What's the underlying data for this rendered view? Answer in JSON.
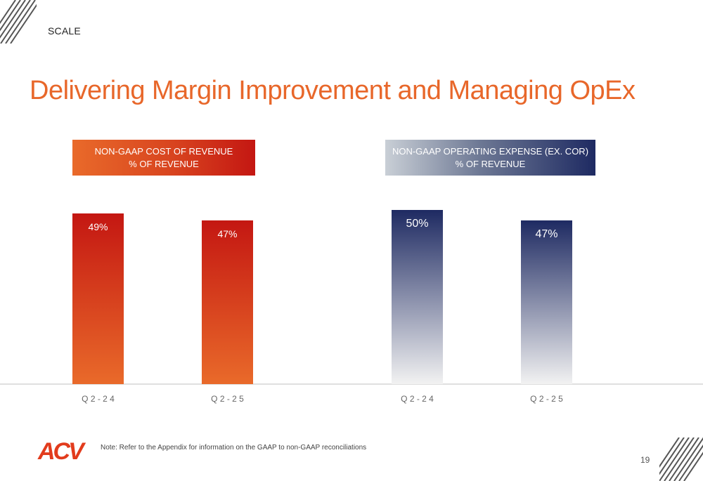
{
  "header": {
    "section": "SCALE",
    "title": "Delivering Margin Improvement and Managing OpEx"
  },
  "chart_data": [
    {
      "type": "bar",
      "title": "NON-GAAP COST OF REVENUE",
      "subtitle": "% OF REVENUE",
      "categories": [
        "Q2-24",
        "Q2-25"
      ],
      "category_labels": [
        "Q 2 - 2 4",
        "Q 2 - 2 5"
      ],
      "values": [
        49,
        47
      ],
      "data_labels": [
        "49%",
        "47%"
      ],
      "ylim": [
        0,
        50
      ],
      "grid": false,
      "colors": {
        "top": "#c41712",
        "bottom": "#e96a2a",
        "label": "#ffffff"
      }
    },
    {
      "type": "bar",
      "title": "NON-GAAP OPERATING EXPENSE (EX. COR)",
      "subtitle": "% OF REVENUE",
      "categories": [
        "Q2-24",
        "Q2-25"
      ],
      "category_labels": [
        "Q 2 - 2 4",
        "Q 2 - 2 5"
      ],
      "values": [
        50,
        47
      ],
      "data_labels": [
        "50%",
        "47%"
      ],
      "ylim": [
        0,
        50
      ],
      "grid": false,
      "colors": {
        "top": "#1e2a62",
        "bottom": "#f2f2f2",
        "label": "#ffffff"
      }
    }
  ],
  "footer": {
    "logo_text": "ACV",
    "note": "Note: Refer to the Appendix for information on the GAAP to non-GAAP reconciliations",
    "page_number": "19"
  },
  "colors": {
    "accent": "#e8672a",
    "navy": "#1e2a62",
    "red": "#c41712"
  }
}
